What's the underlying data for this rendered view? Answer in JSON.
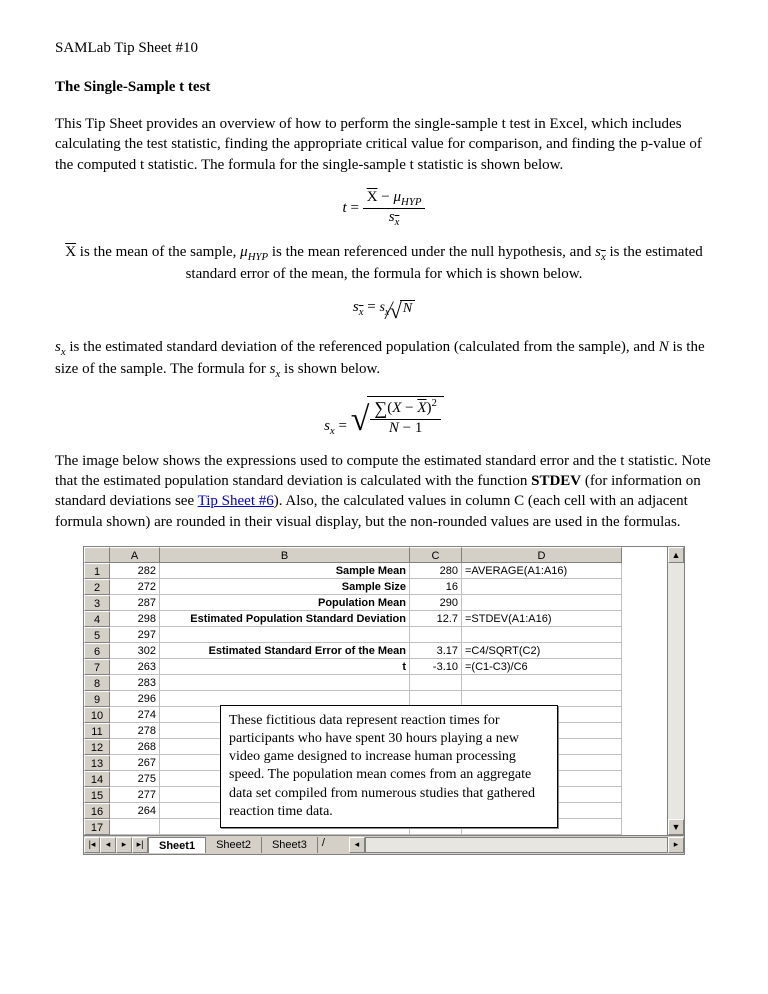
{
  "header": "SAMLab Tip Sheet #10",
  "title": "The Single-Sample t test",
  "para1": "This Tip Sheet provides an overview of how to perform the single-sample t test in Excel, which includes calculating the test statistic, finding the appropriate critical value for comparison, and finding the p-value of the computed t statistic.  The formula for the single-sample t statistic is shown below.",
  "para2a": " is the mean of the sample, ",
  "para2b": " is the mean referenced under the null hypothesis, and ",
  "para2c": " is the estimated standard error of the mean, the formula for which is shown below.",
  "para3a": " is the estimated standard deviation of the referenced population (calculated from the sample), and ",
  "para3b": " is the size of the sample.  The formula for ",
  "para3c": " is shown below.",
  "para4a": "The image below shows the expressions used to compute the estimated standard error and the t statistic.  Note that the estimated population standard deviation is calculated with the function ",
  "para4b": " (for information on standard deviations see ",
  "para4link": "Tip Sheet #6",
  "para4c": ").  Also, the calculated values in column C (each cell with an adjacent formula shown) are rounded in their visual display, but the non-rounded values are used in the formulas.",
  "stdev_word": "STDEV",
  "excel": {
    "col_widths": {
      "A": 50,
      "B": 250,
      "C": 52,
      "D": 160
    },
    "columns": [
      "A",
      "B",
      "C",
      "D"
    ],
    "row_count": 17,
    "data_A": [
      "282",
      "272",
      "287",
      "298",
      "297",
      "302",
      "263",
      "283",
      "296",
      "274",
      "278",
      "268",
      "267",
      "275",
      "277",
      "264",
      ""
    ],
    "rows_BCD": [
      {
        "B": "Sample Mean",
        "C": "280",
        "D": "=AVERAGE(A1:A16)",
        "bBold": true
      },
      {
        "B": "Sample Size",
        "C": "16",
        "D": "",
        "bBold": true
      },
      {
        "B": "Population Mean",
        "C": "290",
        "D": "",
        "bBold": true
      },
      {
        "B": "Estimated Population Standard Deviation",
        "C": "12.7",
        "D": "=STDEV(A1:A16)",
        "bBold": true
      },
      {
        "B": "",
        "C": "",
        "D": ""
      },
      {
        "B": "Estimated Standard Error of the Mean",
        "C": "3.17",
        "D": "=C4/SQRT(C2)",
        "bBold": true
      },
      {
        "B": "t",
        "C": "-3.10",
        "D": "=(C1-C3)/C6",
        "bBold": true
      },
      {
        "B": "",
        "C": "",
        "D": ""
      },
      {
        "B": "",
        "C": "",
        "D": ""
      },
      {
        "B": "",
        "C": "",
        "D": ""
      },
      {
        "B": "",
        "C": "",
        "D": ""
      },
      {
        "B": "",
        "C": "",
        "D": ""
      },
      {
        "B": "",
        "C": "",
        "D": ""
      },
      {
        "B": "",
        "C": "",
        "D": ""
      },
      {
        "B": "",
        "C": "",
        "D": ""
      },
      {
        "B": "",
        "C": "",
        "D": ""
      },
      {
        "B": "",
        "C": "",
        "D": ""
      }
    ],
    "callout": "These fictitious data represent reaction times for participants who have spent 30 hours playing a new video game designed to increase human processing speed.  The population mean comes from an aggregate data set compiled from numerous studies that gathered reaction time data.",
    "tabs": [
      "Sheet1",
      "Sheet2",
      "Sheet3"
    ],
    "header_bg": "#d4d0c8",
    "grid_color": "#c0c0c0"
  }
}
